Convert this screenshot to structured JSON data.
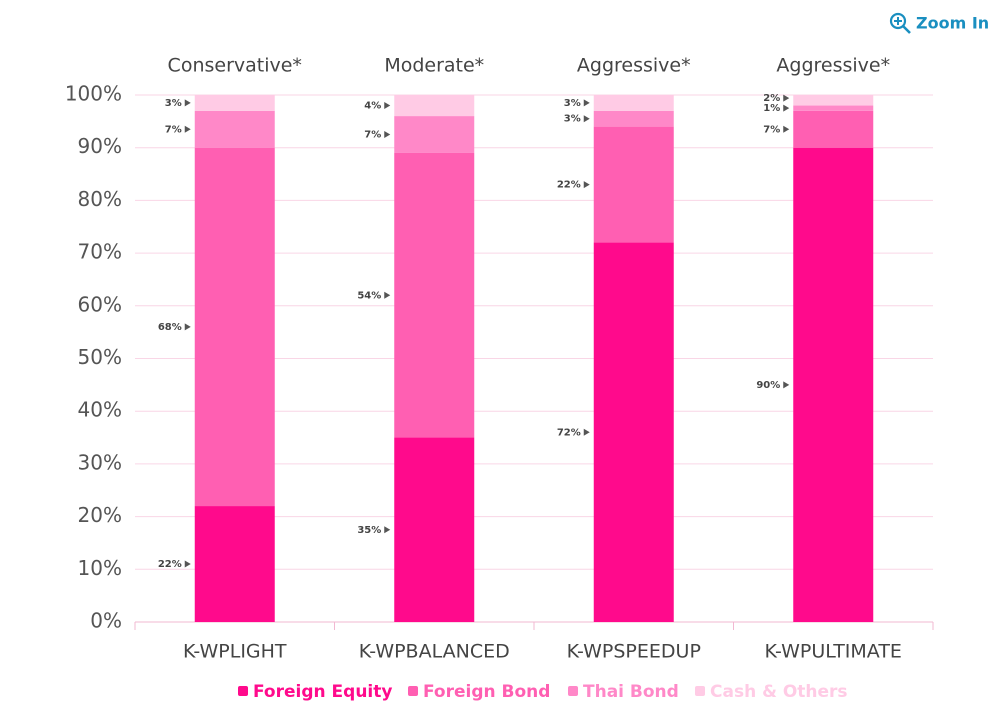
{
  "toolbar": {
    "zoom": "Zoom In"
  },
  "chart_data": {
    "type": "stacked_bar",
    "groups": [
      "Conservative*",
      "Moderate*",
      "Aggressive*",
      "Aggressive*"
    ],
    "categories": [
      "K-WPLIGHT",
      "K-WPBALANCED",
      "K-WPSPEEDUP",
      "K-WPULTIMATE"
    ],
    "series": [
      {
        "name": "Foreign Equity",
        "color": "#ff0a8c",
        "values": [
          22,
          35,
          72,
          90
        ],
        "value_labels": [
          "22%",
          "35%",
          "72%",
          "90%"
        ]
      },
      {
        "name": "Foreign Bond",
        "color": "#ff5fb2",
        "values": [
          68,
          54,
          22,
          7
        ],
        "value_labels": [
          "68%",
          "54%",
          "22%",
          "7%"
        ]
      },
      {
        "name": "Thai Bond",
        "color": "#ff88c8",
        "values": [
          7,
          7,
          3,
          1
        ],
        "value_labels": [
          "7%",
          "7%",
          "3%",
          "1%"
        ]
      },
      {
        "name": "Cash & Others",
        "color": "#ffcbe5",
        "values": [
          3,
          4,
          3,
          2
        ],
        "value_labels": [
          "3%",
          "4%",
          "3%",
          "2%"
        ]
      }
    ],
    "ylim": [
      0,
      100
    ],
    "yticks": [
      {
        "value": 0,
        "label": "0%"
      },
      {
        "value": 10,
        "label": "10%"
      },
      {
        "value": 20,
        "label": "20%"
      },
      {
        "value": 30,
        "label": "30%"
      },
      {
        "value": 40,
        "label": "40%"
      },
      {
        "value": 50,
        "label": "50%"
      },
      {
        "value": 60,
        "label": "60%"
      },
      {
        "value": 70,
        "label": "70%"
      },
      {
        "value": 80,
        "label": "80%"
      },
      {
        "value": 90,
        "label": "90%"
      },
      {
        "value": 100,
        "label": "100%"
      }
    ],
    "grid": true
  }
}
